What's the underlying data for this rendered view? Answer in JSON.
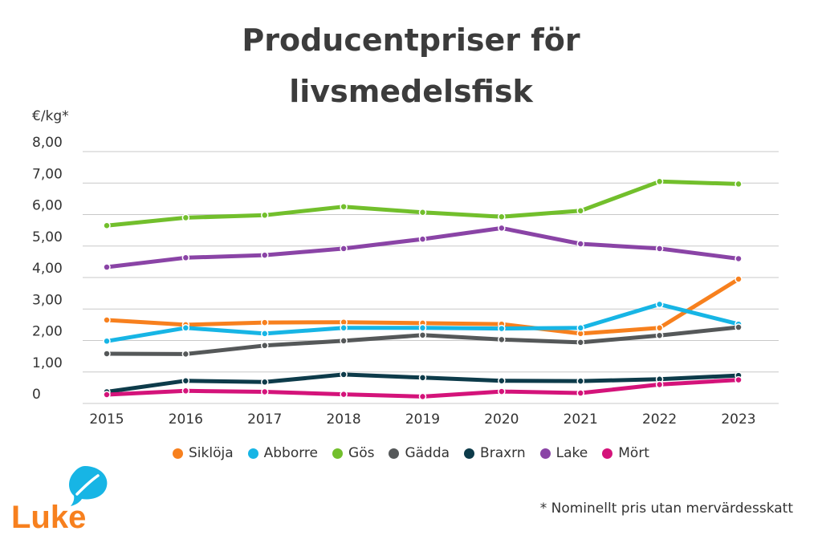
{
  "chart_data": {
    "type": "line",
    "title_lines": [
      "Producentpriser för",
      "livsmedelsfisk"
    ],
    "ylabel": "€/kg*",
    "ylim": [
      0,
      8
    ],
    "y_ticks": [
      "0",
      "1,00",
      "2,00",
      "3,00",
      "4,00",
      "5,00",
      "6,00",
      "7,00",
      "8,00"
    ],
    "x": [
      "2015",
      "2016",
      "2017",
      "2018",
      "2019",
      "2020",
      "2021",
      "2022",
      "2023"
    ],
    "grid": true,
    "legend_position": "bottom",
    "series": [
      {
        "name": "Siklöja",
        "color": "#f7801e",
        "values": [
          2.65,
          2.5,
          2.57,
          2.58,
          2.55,
          2.52,
          2.22,
          2.4,
          3.95
        ]
      },
      {
        "name": "Abborre",
        "color": "#17b5e5",
        "values": [
          1.98,
          2.4,
          2.22,
          2.4,
          2.4,
          2.38,
          2.4,
          3.15,
          2.52
        ]
      },
      {
        "name": "Gös",
        "color": "#72bf2c",
        "values": [
          5.65,
          5.9,
          5.98,
          6.25,
          6.07,
          5.93,
          6.12,
          7.05,
          6.97
        ]
      },
      {
        "name": "Gädda",
        "color": "#555859",
        "values": [
          1.58,
          1.57,
          1.84,
          1.99,
          2.17,
          2.03,
          1.94,
          2.16,
          2.42
        ]
      },
      {
        "name": "Braxrn",
        "color": "#0d3b4a",
        "values": [
          0.37,
          0.72,
          0.68,
          0.92,
          0.82,
          0.72,
          0.71,
          0.77,
          0.89
        ]
      },
      {
        "name": "Lake",
        "color": "#8a44a6",
        "values": [
          4.33,
          4.63,
          4.71,
          4.92,
          5.22,
          5.57,
          5.07,
          4.92,
          4.6
        ]
      },
      {
        "name": "Mört",
        "color": "#d4137a",
        "values": [
          0.28,
          0.4,
          0.37,
          0.29,
          0.22,
          0.38,
          0.33,
          0.6,
          0.75
        ]
      }
    ]
  },
  "footnote": "* Nominellt pris utan mervärdesskatt",
  "logo": {
    "text": "Luke",
    "color": "#f7801e",
    "leaf_color": "#17b5e5"
  }
}
